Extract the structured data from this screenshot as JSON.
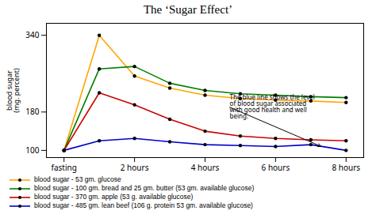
{
  "chart_data": {
    "type": "line",
    "title": "The ‘Sugar Effect’",
    "ylabel": "blood sugar\n(mg. percent)",
    "x": [
      0,
      1,
      2,
      3,
      4,
      5,
      6,
      7,
      8
    ],
    "xlim": [
      -0.5,
      8.5
    ],
    "xticks": [
      {
        "value": 0,
        "label": "fasting"
      },
      {
        "value": 2,
        "label": "2 hours"
      },
      {
        "value": 4,
        "label": "4 hours"
      },
      {
        "value": 6,
        "label": "6 hours"
      },
      {
        "value": 8,
        "label": "8 hours"
      }
    ],
    "ylim": [
      85,
      365
    ],
    "yticks": [
      100,
      180,
      340
    ],
    "series": [
      {
        "name": "blood sugar - 53 gm. glucose",
        "color": "#FFA500",
        "values": [
          100,
          340,
          255,
          230,
          215,
          208,
          205,
          203,
          200
        ]
      },
      {
        "name": "blood sugar - 100 gm. bread and 25 gm. butter (53 gm. available glucose)",
        "color": "#008000",
        "values": [
          100,
          270,
          275,
          240,
          225,
          218,
          215,
          212,
          210
        ]
      },
      {
        "name": "blood sugar - 370 gm. apple (53 g. available glucose)",
        "color": "#CC0000",
        "values": [
          100,
          220,
          195,
          165,
          140,
          130,
          125,
          122,
          120
        ]
      },
      {
        "name": "blood sugar - 485 gm. lean beef (106 g. protein 53 gm. available glucose)",
        "color": "#0000CC",
        "values": [
          100,
          120,
          125,
          118,
          112,
          110,
          108,
          112,
          100
        ]
      }
    ],
    "marker": "circle",
    "legend": "bottom",
    "annotations": [
      {
        "text": "The blue line shows the level\nof blood sugar associated\nwith good health and well\nbeing.",
        "x": 7.3,
        "y": 108,
        "text_x": 4.7,
        "text_y": 190
      }
    ]
  }
}
